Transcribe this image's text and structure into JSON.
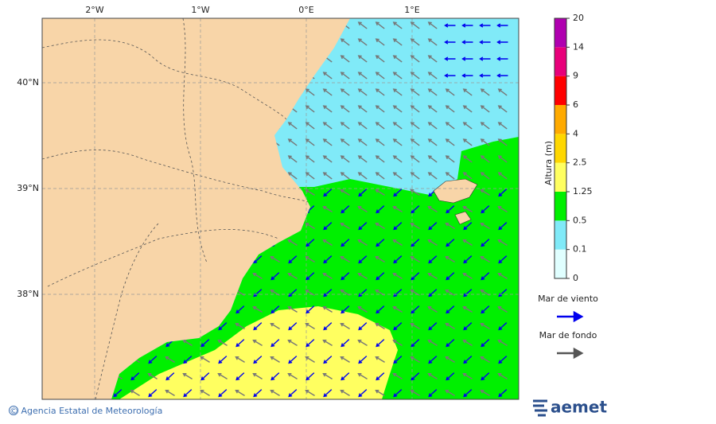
{
  "map": {
    "lon_labels": [
      "2°W",
      "1°W",
      "0°E",
      "1°E"
    ],
    "lat_labels": [
      "40°N",
      "39°N",
      "38°N"
    ],
    "colorbar": {
      "title": "Altura (m)",
      "levels": [
        "0",
        "0.1",
        "0.5",
        "1.25",
        "2.5",
        "4",
        "6",
        "9",
        "14",
        "20"
      ],
      "colors": [
        "#e0ffff",
        "#80eaf8",
        "#00f000",
        "#ffff60",
        "#ffd700",
        "#ffaa00",
        "#ff0000",
        "#e8007a",
        "#b000b0"
      ]
    },
    "legend": [
      {
        "label": "Mar de viento",
        "color": "#0000ee"
      },
      {
        "label": "Mar de fondo",
        "color": "#555555"
      }
    ]
  },
  "footer": {
    "credit": "© Agencia Estatal de Meteorología",
    "logo": "aemet"
  }
}
